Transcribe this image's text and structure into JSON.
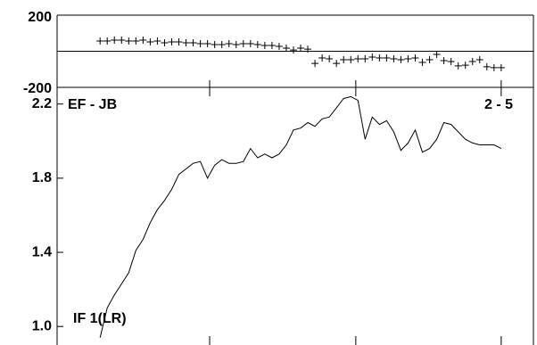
{
  "chart_data": [
    {
      "type": "scatter",
      "marker": "+",
      "color": "#000000",
      "x": [
        6,
        7,
        8,
        9,
        10,
        11,
        12,
        13,
        14,
        15,
        16,
        17,
        18,
        19,
        20,
        21,
        22,
        23,
        24,
        25,
        26,
        27,
        28,
        29,
        30,
        31,
        32,
        33,
        34,
        35,
        36,
        37,
        38,
        39,
        40,
        41,
        42,
        43,
        44,
        45,
        46,
        47,
        48,
        49,
        50,
        51,
        52,
        53,
        54,
        55,
        56,
        57,
        58,
        59,
        60,
        61,
        62
      ],
      "values": [
        57,
        57,
        62,
        62,
        57,
        57,
        62,
        52,
        57,
        47,
        52,
        52,
        47,
        47,
        42,
        42,
        37,
        37,
        42,
        37,
        42,
        42,
        37,
        32,
        32,
        27,
        17,
        7,
        17,
        12,
        -67,
        -37,
        -42,
        -67,
        -47,
        -47,
        -42,
        -42,
        -32,
        -37,
        -37,
        -42,
        -47,
        -42,
        -37,
        -62,
        -47,
        -17,
        -52,
        -57,
        -81,
        -77,
        -57,
        -47,
        -86,
        -91,
        -91
      ],
      "xlim": [
        0,
        66.5
      ],
      "xticks": [
        21.3,
        41.7,
        62
      ],
      "ylim": [
        -200,
        200
      ],
      "yticks": [
        200,
        -200
      ],
      "reference_line": 0
    },
    {
      "type": "line",
      "color": "#000000",
      "annotations": [
        "EF - JB",
        "2 - 5",
        "IF 1(LR)"
      ],
      "x": [
        6,
        7,
        8,
        9,
        10,
        11,
        12,
        13,
        14,
        15,
        16,
        17,
        18,
        19,
        20,
        21,
        22,
        23,
        24,
        25,
        26,
        27,
        28,
        29,
        30,
        31,
        32,
        33,
        34,
        35,
        36,
        37,
        38,
        39,
        40,
        41,
        42,
        43,
        44,
        45,
        46,
        47,
        48,
        49,
        50,
        51,
        52,
        53,
        54,
        55,
        56,
        57,
        58,
        59,
        60,
        61,
        62
      ],
      "values": [
        0.94,
        1.1,
        1.17,
        1.23,
        1.29,
        1.41,
        1.47,
        1.56,
        1.63,
        1.68,
        1.74,
        1.82,
        1.85,
        1.88,
        1.89,
        1.8,
        1.87,
        1.9,
        1.88,
        1.88,
        1.89,
        1.96,
        1.91,
        1.93,
        1.91,
        1.93,
        1.98,
        2.06,
        2.07,
        2.1,
        2.08,
        2.12,
        2.13,
        2.18,
        2.23,
        2.24,
        2.22,
        2.01,
        2.13,
        2.09,
        2.11,
        2.05,
        1.95,
        1.99,
        2.06,
        1.94,
        1.96,
        2.01,
        2.1,
        2.09,
        2.05,
        2.01,
        1.99,
        1.98,
        1.98,
        1.98,
        1.96
      ],
      "xlim": [
        0,
        66.5
      ],
      "xticks": [
        21.3,
        41.7,
        62
      ],
      "ylim": [
        0.9,
        2.29
      ],
      "yticks": [
        {
          "value": 1,
          "label": "1.0"
        },
        1.4,
        1.8,
        2.2
      ]
    }
  ]
}
